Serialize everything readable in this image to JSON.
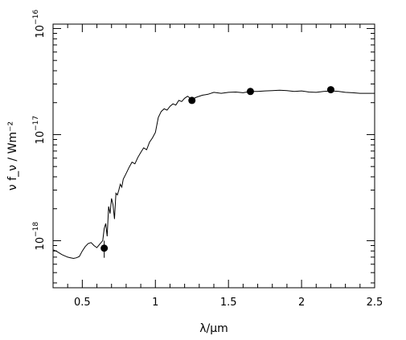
{
  "chart_data": {
    "type": "line",
    "title": "",
    "xlabel": "λ/μm",
    "ylabel": "ν f_ν / Wm⁻²",
    "xlim": [
      0.3,
      2.5
    ],
    "ylim": [
      3.6e-19,
      1.1e-16
    ],
    "yscale": "log",
    "grid": false,
    "legend": "none",
    "x_ticks": [
      {
        "value": 0.5,
        "label": "0.5"
      },
      {
        "value": 1.0,
        "label": "1"
      },
      {
        "value": 1.5,
        "label": "1.5"
      },
      {
        "value": 2.0,
        "label": "2"
      },
      {
        "value": 2.5,
        "label": "2.5"
      }
    ],
    "y_ticks": [
      {
        "value": 1e-18,
        "mantissa": "10",
        "exponent": "−18"
      },
      {
        "value": 1e-17,
        "mantissa": "10",
        "exponent": "−17"
      },
      {
        "value": 1e-16,
        "mantissa": "10",
        "exponent": "−16"
      }
    ],
    "series": [
      {
        "kind": "spectrum",
        "x": [
          0.3,
          0.32,
          0.34,
          0.36,
          0.38,
          0.4,
          0.42,
          0.44,
          0.46,
          0.48,
          0.5,
          0.52,
          0.54,
          0.56,
          0.58,
          0.6,
          0.62,
          0.64,
          0.65,
          0.66,
          0.67,
          0.68,
          0.69,
          0.7,
          0.71,
          0.72,
          0.73,
          0.74,
          0.75,
          0.76,
          0.77,
          0.78,
          0.8,
          0.82,
          0.84,
          0.86,
          0.88,
          0.9,
          0.92,
          0.94,
          0.96,
          0.98,
          1.0,
          1.02,
          1.04,
          1.06,
          1.08,
          1.1,
          1.12,
          1.14,
          1.16,
          1.18,
          1.2,
          1.22,
          1.25,
          1.28,
          1.32,
          1.36,
          1.4,
          1.45,
          1.5,
          1.55,
          1.6,
          1.65,
          1.7,
          1.75,
          1.8,
          1.85,
          1.9,
          1.95,
          2.0,
          2.05,
          2.1,
          2.15,
          2.2,
          2.25,
          2.3,
          2.35,
          2.4,
          2.5
        ],
        "y": [
          8.2e-19,
          8e-19,
          7.7e-19,
          7.4e-19,
          7.2e-19,
          7e-19,
          6.9e-19,
          6.8e-19,
          6.9e-19,
          7.1e-19,
          8e-19,
          8.8e-19,
          9.4e-19,
          9.6e-19,
          9e-19,
          8.6e-19,
          9.3e-19,
          1e-18,
          1.3e-18,
          1.45e-18,
          1.1e-18,
          2.1e-18,
          1.8e-18,
          2.5e-18,
          2.2e-18,
          1.6e-18,
          2.8e-18,
          2.7e-18,
          3e-18,
          3.4e-18,
          3.2e-18,
          3.8e-18,
          4.3e-18,
          4.9e-18,
          5.5e-18,
          5.3e-18,
          6.1e-18,
          6.8e-18,
          7.5e-18,
          7.2e-18,
          8.5e-18,
          9.3e-18,
          1.05e-17,
          1.45e-17,
          1.65e-17,
          1.75e-17,
          1.7e-17,
          1.85e-17,
          1.95e-17,
          1.9e-17,
          2.1e-17,
          2.05e-17,
          2.2e-17,
          2.3e-17,
          2.15e-17,
          2.25e-17,
          2.35e-17,
          2.4e-17,
          2.5e-17,
          2.45e-17,
          2.5e-17,
          2.52e-17,
          2.48e-17,
          2.55e-17,
          2.55e-17,
          2.58e-17,
          2.6e-17,
          2.62e-17,
          2.6e-17,
          2.55e-17,
          2.58e-17,
          2.52e-17,
          2.5e-17,
          2.55e-17,
          2.58e-17,
          2.56e-17,
          2.5e-17,
          2.48e-17,
          2.45e-17,
          2.45e-17
        ]
      },
      {
        "kind": "photometry",
        "x": [
          0.65,
          1.25,
          1.65,
          2.2
        ],
        "y": [
          8.5e-19,
          2.1e-17,
          2.55e-17,
          2.65e-17
        ],
        "yerr_lo": [
          6.9e-19,
          2e-17,
          2.45e-17,
          2.55e-17
        ],
        "yerr_hi": [
          1e-18,
          2.25e-17,
          2.65e-17,
          2.75e-17
        ]
      }
    ]
  }
}
